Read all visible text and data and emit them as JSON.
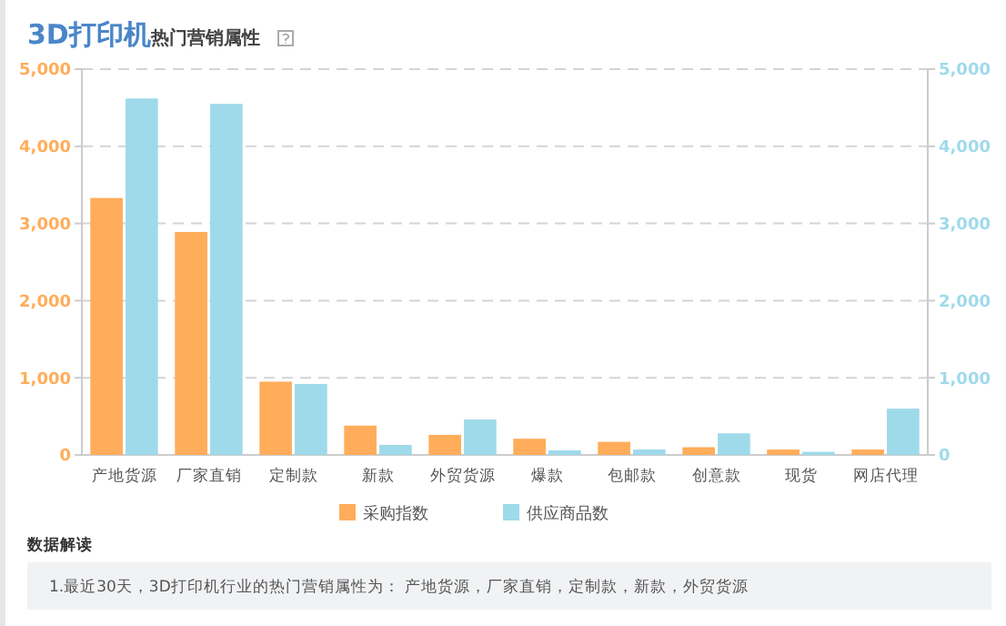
{
  "chart_data": {
    "type": "bar",
    "title": "3D打印机",
    "subtitle": "热门营销属性",
    "categories": [
      "产地货源",
      "厂家直销",
      "定制款",
      "新款",
      "外贸货源",
      "爆款",
      "包邮款",
      "创意款",
      "现货",
      "网店代理"
    ],
    "series": [
      {
        "name": "采购指数",
        "color": "#ffad5a",
        "values": [
          3330,
          2890,
          950,
          380,
          260,
          210,
          170,
          100,
          70,
          70
        ]
      },
      {
        "name": "供应商品数",
        "color": "#9fdaea",
        "axis": "y2",
        "values": [
          4620,
          4550,
          920,
          130,
          460,
          60,
          70,
          280,
          40,
          600
        ]
      }
    ],
    "ylim": [
      0,
      5000
    ],
    "yticks": [
      {
        "value": 0,
        "label": "0"
      },
      {
        "value": 1000,
        "label": "1,000"
      },
      {
        "value": 2000,
        "label": "2,000"
      },
      {
        "value": 3000,
        "label": "3,000"
      },
      {
        "value": 4000,
        "label": "4,000"
      },
      {
        "value": 5000,
        "label": "5,000"
      }
    ],
    "y2lim": [
      0,
      5000
    ],
    "y2ticks": [
      {
        "value": 0,
        "label": "0"
      },
      {
        "value": 1000,
        "label": "1,000"
      },
      {
        "value": 2000,
        "label": "2,000"
      },
      {
        "value": 3000,
        "label": "3,000"
      },
      {
        "value": 4000,
        "label": "4,000"
      },
      {
        "value": 5000,
        "label": "5,000"
      }
    ],
    "grid": "y",
    "legend": "bottom",
    "annotations": [
      "数据解读",
      "1.最近30天，3D打印机行业的热门营销属性为： 产地货源，厂家直销，定制款，新款，外贸货源"
    ]
  }
}
